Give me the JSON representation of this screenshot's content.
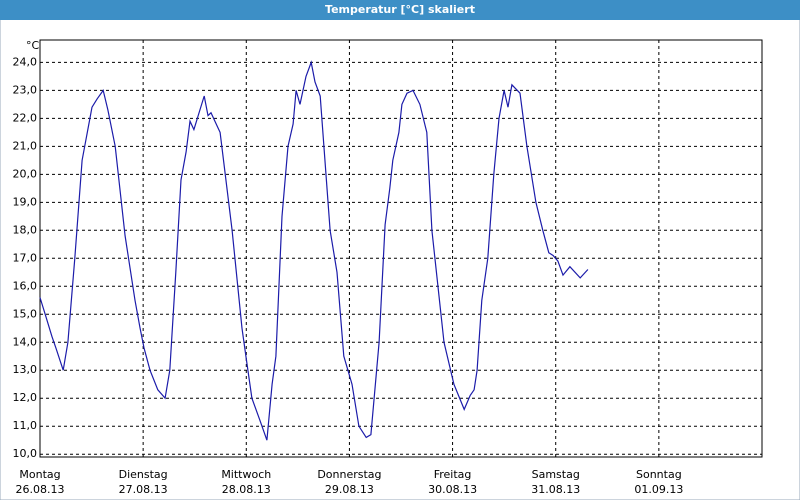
{
  "chart_data": {
    "type": "line",
    "title": "Temperatur [°C] skaliert",
    "y_unit": "°C",
    "x": [
      0,
      1.2,
      2.8,
      3.7,
      5.4,
      6.5,
      8.1,
      9.8,
      12.1,
      13.3,
      14.7,
      15.8,
      17.5,
      19.8,
      22.1,
      23.3,
      24.2,
      25.6,
      27.4,
      29.1,
      30.2,
      31.6,
      32.8,
      34.0,
      34.9,
      35.8,
      38.2,
      39.1,
      39.8,
      41.9,
      44.7,
      47.0,
      47.9,
      49.3,
      51.2,
      52.8,
      54.0,
      54.9,
      56.3,
      57.7,
      58.9,
      59.6,
      60.5,
      61.9,
      63.1,
      64.0,
      65.2,
      67.5,
      69.1,
      70.7,
      72.6,
      74.2,
      75.9,
      77.0,
      78.9,
      80.3,
      81.4,
      82.1,
      83.5,
      84.2,
      85.4,
      86.8,
      88.4,
      90.0,
      91.2,
      94.0,
      96.3,
      98.7,
      100.1,
      101.0,
      101.7,
      102.8,
      104.2,
      105.6,
      106.8,
      108.0,
      108.9,
      109.8,
      111.7,
      113.3,
      115.4,
      117.0,
      118.4,
      119.4,
      120.5,
      121.7,
      123.3,
      125.7,
      127.5
    ],
    "series": [
      {
        "name": "Temperatur",
        "color": "#1c1caa",
        "values": [
          15.6,
          15.0,
          14.2,
          13.8,
          13.0,
          14.0,
          17.0,
          20.5,
          22.4,
          22.7,
          23.0,
          22.3,
          21.0,
          17.8,
          15.5,
          14.5,
          13.8,
          13.0,
          12.3,
          12.0,
          13.0,
          16.5,
          19.8,
          20.8,
          21.9,
          21.6,
          22.8,
          22.1,
          22.2,
          21.5,
          18.0,
          14.5,
          13.5,
          12.0,
          11.2,
          10.5,
          12.5,
          13.5,
          18.5,
          21.0,
          21.8,
          23.0,
          22.5,
          23.5,
          24.0,
          23.3,
          22.8,
          18.0,
          16.5,
          13.5,
          12.5,
          11.0,
          10.6,
          10.7,
          14.0,
          18.2,
          19.5,
          20.5,
          21.5,
          22.5,
          22.9,
          23.0,
          22.5,
          21.5,
          18.0,
          14.0,
          12.5,
          11.6,
          12.1,
          12.3,
          13.0,
          15.5,
          17.0,
          20.0,
          22.0,
          23.0,
          22.4,
          23.2,
          22.9,
          21.0,
          19.0,
          18.0,
          17.2,
          17.1,
          16.9,
          16.4,
          16.7,
          16.3,
          16.6
        ]
      }
    ],
    "xlim": [
      0,
      168
    ],
    "xticks": [
      {
        "value": 0,
        "label": "Montag"
      },
      {
        "value": 24,
        "label": "Dienstag"
      },
      {
        "value": 48,
        "label": "Mittwoch"
      },
      {
        "value": 72,
        "label": "Donnerstag"
      },
      {
        "value": 96,
        "label": "Freitag"
      },
      {
        "value": 120,
        "label": "Samstag"
      },
      {
        "value": 144,
        "label": "Sonntag"
      }
    ],
    "xtick_dates": [
      "26.08.13",
      "27.08.13",
      "28.08.13",
      "29.08.13",
      "30.08.13",
      "31.08.13",
      "01.09.13"
    ],
    "ylim": [
      9.9,
      24.8
    ],
    "yticks": [
      {
        "value": 10,
        "label": "10,0"
      },
      {
        "value": 11,
        "label": "11,0"
      },
      {
        "value": 12,
        "label": "12,0"
      },
      {
        "value": 13,
        "label": "13,0"
      },
      {
        "value": 14,
        "label": "14,0"
      },
      {
        "value": 15,
        "label": "15,0"
      },
      {
        "value": 16,
        "label": "16,0"
      },
      {
        "value": 17,
        "label": "17,0"
      },
      {
        "value": 18,
        "label": "18,0"
      },
      {
        "value": 19,
        "label": "19,0"
      },
      {
        "value": 20,
        "label": "20,0"
      },
      {
        "value": 21,
        "label": "21,0"
      },
      {
        "value": 22,
        "label": "22,0"
      },
      {
        "value": 23,
        "label": "23,0"
      },
      {
        "value": 24,
        "label": "24,0"
      }
    ],
    "grid": true
  }
}
